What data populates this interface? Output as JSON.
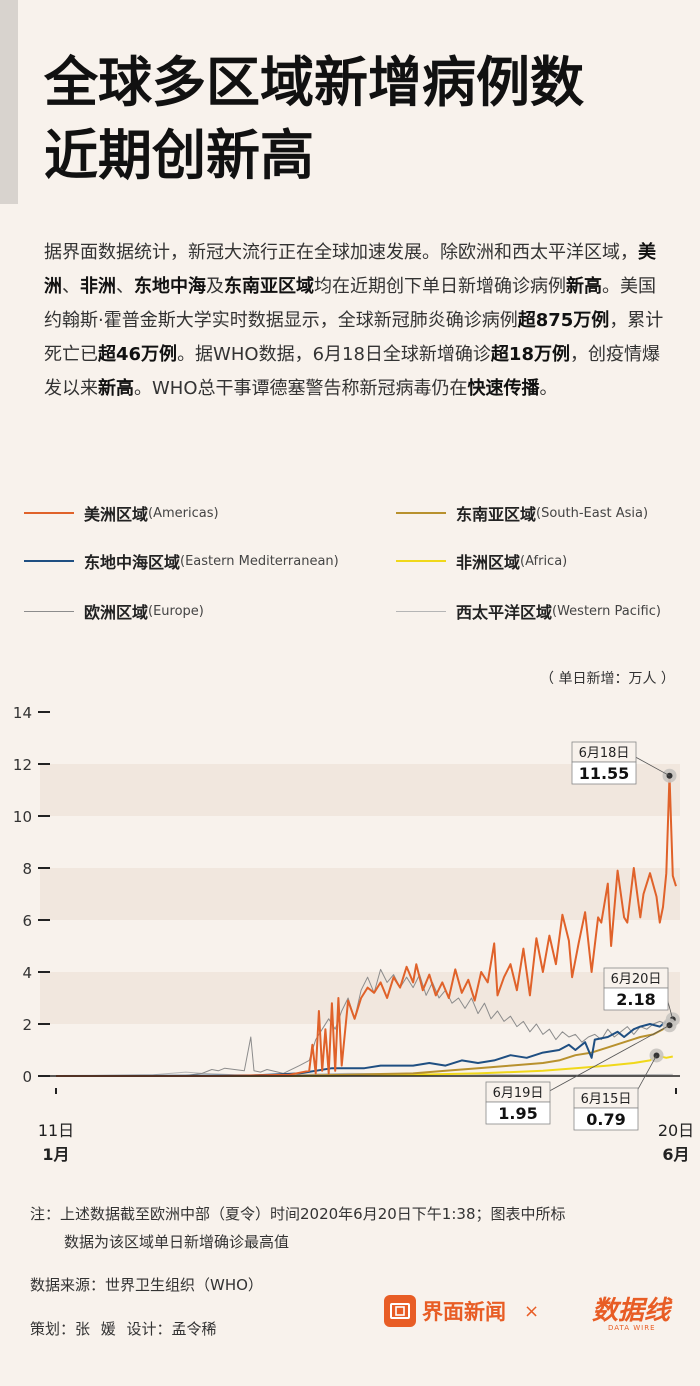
{
  "header": {
    "title_line1": "全球多区域新增病例数",
    "title_line2": "近期创新高"
  },
  "intro": {
    "p1": "据界面数据统计，新冠大流行正在全球加速发展。除欧洲和西太平洋区域，",
    "b1": "美洲",
    "p2": "、",
    "b2": "非洲",
    "p3": "、",
    "b3": "东地中海",
    "p4": "及",
    "b4": "东南亚区域",
    "p5": "均在近期创下单日新增确诊病例",
    "b5": "新高",
    "p6": "。美国约翰斯·霍普金斯大学实时数据显示，全球新冠肺炎确诊病例",
    "b6": "超875万例",
    "p7": "，累计死亡已",
    "b7": "超46万例",
    "p8": "。据WHO数据，6月18日全球新增确诊",
    "b8": "超18万例",
    "p9": "，创疫情爆发以来",
    "b9": "新高",
    "p10": "。WHO总干事谭德塞警告称新冠病毒仍在",
    "b10": "快速传播",
    "p11": "。"
  },
  "legend": [
    {
      "cn": "美洲区域",
      "en": "(Americas)",
      "color": "#e0622a"
    },
    {
      "cn": "东南亚区域",
      "en": "(South-East Asia)",
      "color": "#b8912e"
    },
    {
      "cn": "东地中海区域",
      "en": "(Eastern Mediterranean)",
      "color": "#1f4f82"
    },
    {
      "cn": "非洲区域",
      "en": "(Africa)",
      "color": "#f0d81a"
    },
    {
      "cn": "欧洲区域",
      "en": "(Europe)",
      "color": "#8c8c8c"
    },
    {
      "cn": "西太平洋区域",
      "en": "(Western Pacific)",
      "color": "#b5b5b5"
    }
  ],
  "unit_note": "（ 单日新增：万人 ）",
  "chart_data": {
    "type": "line",
    "ylim": [
      0,
      14
    ],
    "yticks": [
      "0",
      "2",
      "4",
      "6",
      "8",
      "10",
      "12",
      "14"
    ],
    "x_start": {
      "day": "11日",
      "month": "1月"
    },
    "x_end": {
      "day": "20日",
      "month": "6月"
    },
    "grid_bands": true,
    "series": [
      {
        "name": "美洲区域",
        "color": "#e0622a",
        "points": [
          [
            0,
            0
          ],
          [
            50,
            0
          ],
          [
            60,
            0.02
          ],
          [
            72,
            0.05
          ],
          [
            78,
            0.2
          ],
          [
            79,
            1.2
          ],
          [
            80,
            0.1
          ],
          [
            81,
            2.5
          ],
          [
            82,
            0.2
          ],
          [
            83,
            1.8
          ],
          [
            84,
            0.1
          ],
          [
            85,
            2.8
          ],
          [
            86,
            0.2
          ],
          [
            87,
            3.0
          ],
          [
            88,
            0.4
          ],
          [
            90,
            2.9
          ],
          [
            92,
            2.2
          ],
          [
            94,
            3.0
          ],
          [
            96,
            3.4
          ],
          [
            98,
            3.2
          ],
          [
            100,
            3.6
          ],
          [
            102,
            3.0
          ],
          [
            104,
            3.8
          ],
          [
            106,
            3.4
          ],
          [
            108,
            4.2
          ],
          [
            110,
            3.6
          ],
          [
            111,
            4.3
          ],
          [
            113,
            3.3
          ],
          [
            115,
            3.9
          ],
          [
            117,
            3.1
          ],
          [
            119,
            3.6
          ],
          [
            121,
            3.0
          ],
          [
            123,
            4.1
          ],
          [
            125,
            3.2
          ],
          [
            127,
            3.7
          ],
          [
            129,
            2.9
          ],
          [
            131,
            4.0
          ],
          [
            133,
            3.6
          ],
          [
            135,
            5.1
          ],
          [
            136,
            3.1
          ],
          [
            138,
            3.8
          ],
          [
            140,
            4.3
          ],
          [
            142,
            3.3
          ],
          [
            144,
            4.9
          ],
          [
            146,
            3.1
          ],
          [
            148,
            5.3
          ],
          [
            150,
            4.0
          ],
          [
            152,
            5.4
          ],
          [
            154,
            4.3
          ],
          [
            156,
            6.2
          ],
          [
            158,
            5.2
          ],
          [
            159,
            3.8
          ],
          [
            161,
            5.1
          ],
          [
            163,
            6.3
          ],
          [
            165,
            4.0
          ],
          [
            167,
            6.1
          ],
          [
            168,
            5.9
          ],
          [
            170,
            7.4
          ],
          [
            171,
            5.0
          ],
          [
            173,
            7.9
          ],
          [
            175,
            6.1
          ],
          [
            176,
            5.9
          ],
          [
            178,
            8.0
          ],
          [
            180,
            6.1
          ],
          [
            181,
            7.0
          ],
          [
            183,
            7.8
          ],
          [
            185,
            6.9
          ],
          [
            186,
            5.9
          ],
          [
            187,
            6.5
          ],
          [
            188,
            7.8
          ],
          [
            189,
            11.55
          ],
          [
            190,
            7.7
          ],
          [
            191,
            7.3
          ]
        ]
      },
      {
        "name": "欧洲区域",
        "color": "#8c8c8c",
        "points": [
          [
            0,
            0
          ],
          [
            40,
            0.02
          ],
          [
            45,
            0.1
          ],
          [
            48,
            0.25
          ],
          [
            50,
            0.2
          ],
          [
            52,
            0.3
          ],
          [
            55,
            0.25
          ],
          [
            58,
            0.2
          ],
          [
            60,
            1.5
          ],
          [
            61,
            0.2
          ],
          [
            63,
            0.15
          ],
          [
            65,
            0.25
          ],
          [
            70,
            0.1
          ],
          [
            75,
            0.4
          ],
          [
            78,
            0.6
          ],
          [
            80,
            1.4
          ],
          [
            82,
            1.8
          ],
          [
            84,
            2.2
          ],
          [
            86,
            1.8
          ],
          [
            88,
            2.5
          ],
          [
            90,
            3.0
          ],
          [
            92,
            2.2
          ],
          [
            94,
            3.3
          ],
          [
            96,
            3.8
          ],
          [
            98,
            3.2
          ],
          [
            100,
            4.1
          ],
          [
            102,
            3.6
          ],
          [
            104,
            3.9
          ],
          [
            106,
            3.4
          ],
          [
            108,
            3.8
          ],
          [
            110,
            3.4
          ],
          [
            112,
            3.9
          ],
          [
            114,
            3.1
          ],
          [
            116,
            3.6
          ],
          [
            118,
            3.0
          ],
          [
            120,
            3.3
          ],
          [
            122,
            2.8
          ],
          [
            124,
            3.0
          ],
          [
            126,
            2.6
          ],
          [
            128,
            3.0
          ],
          [
            130,
            2.4
          ],
          [
            132,
            2.8
          ],
          [
            134,
            2.2
          ],
          [
            136,
            2.5
          ],
          [
            138,
            2.1
          ],
          [
            140,
            2.3
          ],
          [
            142,
            1.9
          ],
          [
            144,
            2.1
          ],
          [
            146,
            1.7
          ],
          [
            148,
            2.0
          ],
          [
            150,
            1.6
          ],
          [
            152,
            1.8
          ],
          [
            154,
            1.4
          ],
          [
            156,
            1.7
          ],
          [
            158,
            1.5
          ],
          [
            160,
            1.6
          ],
          [
            162,
            1.3
          ],
          [
            164,
            1.5
          ],
          [
            166,
            1.6
          ],
          [
            168,
            1.4
          ],
          [
            170,
            1.8
          ],
          [
            172,
            1.5
          ],
          [
            174,
            1.7
          ],
          [
            176,
            1.9
          ],
          [
            178,
            1.6
          ],
          [
            180,
            1.9
          ],
          [
            182,
            1.8
          ],
          [
            184,
            2.0
          ],
          [
            186,
            2.1
          ],
          [
            188,
            2.0
          ],
          [
            190,
            2.2
          ]
        ]
      },
      {
        "name": "东地中海区域",
        "color": "#1f4f82",
        "points": [
          [
            0,
            0
          ],
          [
            60,
            0.02
          ],
          [
            75,
            0.1
          ],
          [
            85,
            0.3
          ],
          [
            95,
            0.3
          ],
          [
            100,
            0.4
          ],
          [
            110,
            0.4
          ],
          [
            115,
            0.5
          ],
          [
            120,
            0.4
          ],
          [
            125,
            0.6
          ],
          [
            130,
            0.5
          ],
          [
            135,
            0.6
          ],
          [
            140,
            0.8
          ],
          [
            145,
            0.7
          ],
          [
            150,
            0.9
          ],
          [
            155,
            1.0
          ],
          [
            158,
            1.2
          ],
          [
            160,
            1.0
          ],
          [
            163,
            1.3
          ],
          [
            165,
            0.7
          ],
          [
            166,
            1.4
          ],
          [
            170,
            1.5
          ],
          [
            173,
            1.7
          ],
          [
            175,
            1.5
          ],
          [
            178,
            1.8
          ],
          [
            180,
            1.9
          ],
          [
            183,
            2.0
          ],
          [
            186,
            1.9
          ],
          [
            188,
            2.1
          ],
          [
            190,
            2.18
          ]
        ]
      },
      {
        "name": "东南亚区域",
        "color": "#b8912e",
        "points": [
          [
            0,
            0
          ],
          [
            70,
            0
          ],
          [
            90,
            0.05
          ],
          [
            110,
            0.1
          ],
          [
            120,
            0.2
          ],
          [
            130,
            0.3
          ],
          [
            140,
            0.4
          ],
          [
            150,
            0.5
          ],
          [
            155,
            0.6
          ],
          [
            160,
            0.8
          ],
          [
            165,
            0.9
          ],
          [
            170,
            1.1
          ],
          [
            175,
            1.3
          ],
          [
            180,
            1.5
          ],
          [
            184,
            1.6
          ],
          [
            187,
            1.8
          ],
          [
            189,
            1.95
          ],
          [
            190,
            1.9
          ]
        ]
      },
      {
        "name": "非洲区域",
        "color": "#f0d81a",
        "points": [
          [
            0,
            0
          ],
          [
            80,
            0
          ],
          [
            110,
            0.05
          ],
          [
            130,
            0.1
          ],
          [
            150,
            0.2
          ],
          [
            160,
            0.3
          ],
          [
            170,
            0.4
          ],
          [
            178,
            0.5
          ],
          [
            183,
            0.6
          ],
          [
            185,
            0.79
          ],
          [
            188,
            0.7
          ],
          [
            190,
            0.75
          ]
        ]
      },
      {
        "name": "西太平洋区域",
        "color": "#b5b5b5",
        "points": [
          [
            0,
            0
          ],
          [
            30,
            0.05
          ],
          [
            40,
            0.15
          ],
          [
            45,
            0.1
          ],
          [
            55,
            0.05
          ],
          [
            70,
            0.05
          ],
          [
            90,
            0.1
          ],
          [
            110,
            0.08
          ],
          [
            130,
            0.06
          ],
          [
            150,
            0.05
          ],
          [
            170,
            0.05
          ],
          [
            190,
            0.06
          ]
        ]
      }
    ],
    "annotations": [
      {
        "date": "6月18日",
        "value": "11.55",
        "x": 189,
        "y": 11.55
      },
      {
        "date": "6月20日",
        "value": "2.18",
        "x": 190,
        "y": 2.18
      },
      {
        "date": "6月19日",
        "value": "1.95",
        "x": 189,
        "y": 1.95
      },
      {
        "date": "6月15日",
        "value": "0.79",
        "x": 185,
        "y": 0.79
      }
    ]
  },
  "notes": {
    "line1": "注：上述数据截至欧洲中部（夏令）时间2020年6月20日下午1:38；图表中所标",
    "line2": "数据为该区域单日新增确诊最高值"
  },
  "source": "数据来源：世界卫生组织（WHO）",
  "credits": "策划：张 媛   设计：孟令稀",
  "brand": {
    "name": "界面新闻",
    "x": "×",
    "partner": "数据线",
    "partner_sub": "DATA WIRE"
  }
}
